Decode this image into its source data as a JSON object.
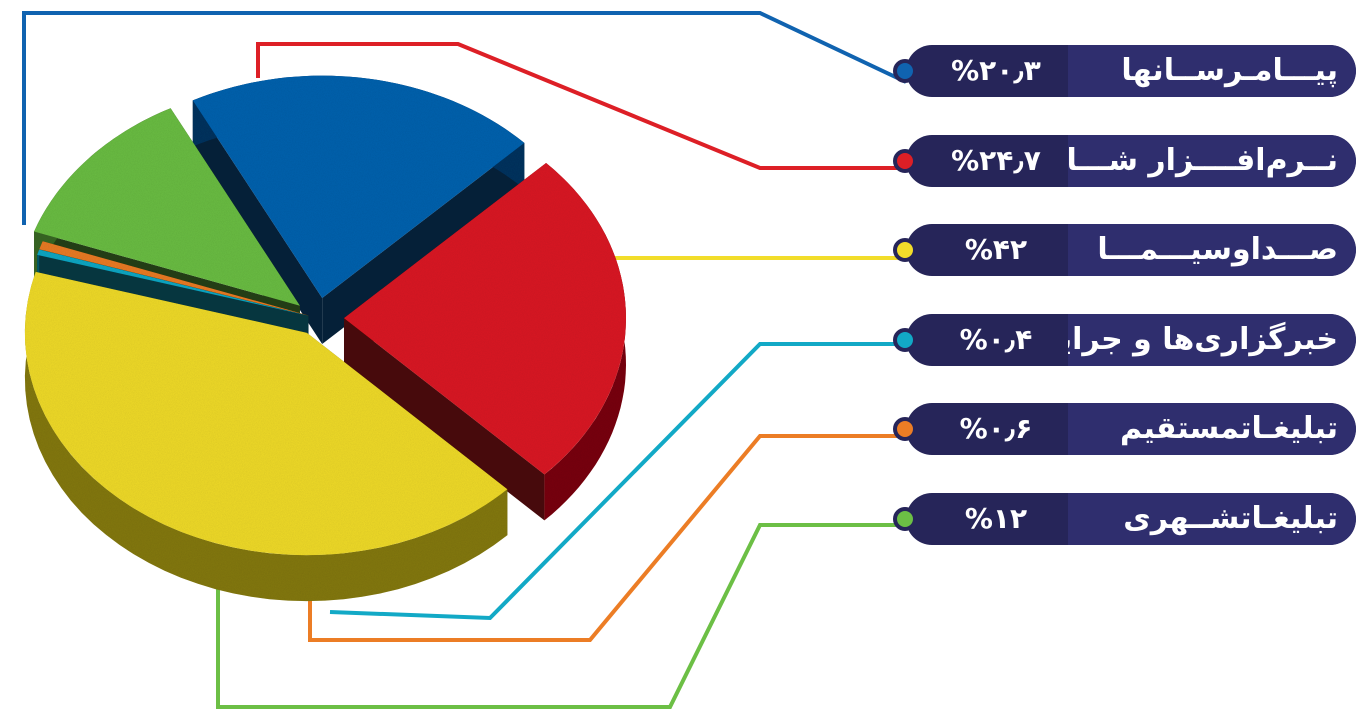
{
  "chart_data": {
    "type": "pie",
    "title": "",
    "categories": [
      "پیـــامـرســانها",
      "نــرم‌افــــزار شـــاد",
      "صـــداوسیـــمـــا",
      "خبرگزاری‌ها و جراید",
      "تبلیغـاتمستقیم",
      "تبلیغـاتشــهری"
    ],
    "values": [
      20.3,
      24.7,
      42,
      0.4,
      0.6,
      12
    ],
    "value_labels": [
      "%۲۰٫۳",
      "%۲۴٫۷",
      "%۴۲",
      "%۰٫۴",
      "%۰٫۶",
      "%۱۲"
    ],
    "colors": [
      "#1063b0",
      "#dd1f26",
      "#f2dd2a",
      "#12a9c6",
      "#ec7d25",
      "#6cbf45"
    ],
    "legend_position": "right"
  }
}
